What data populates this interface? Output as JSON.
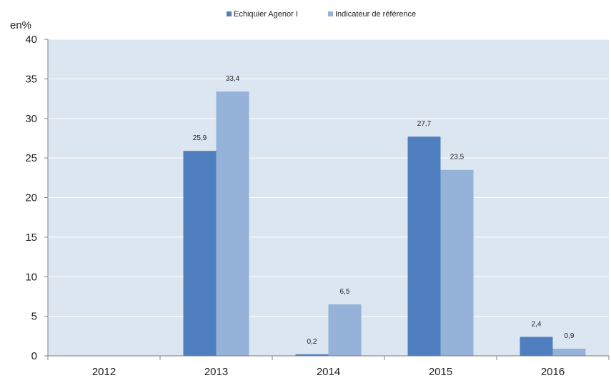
{
  "chart_data": {
    "type": "bar",
    "categories": [
      "2012",
      "2013",
      "2014",
      "2015",
      "2016"
    ],
    "series": [
      {
        "name": "Echiquier Agenor I",
        "values": [
          null,
          25.9,
          0.2,
          27.7,
          2.4
        ],
        "labels": [
          "",
          "25,9",
          "0,2",
          "27,7",
          "2,4"
        ]
      },
      {
        "name": "Indicateur de référence",
        "values": [
          null,
          33.4,
          6.5,
          23.5,
          0.9
        ],
        "labels": [
          "",
          "33,4",
          "6,5",
          "23,5",
          "0,9"
        ]
      }
    ],
    "ylabel": "en%",
    "ylim": [
      0,
      40
    ],
    "yticks": [
      0,
      5,
      10,
      15,
      20,
      25,
      30,
      35,
      40
    ],
    "grid": true,
    "legend_position": "top-center"
  },
  "colors": {
    "series": [
      "#4f7fbf",
      "#95b3d9"
    ],
    "plot_background": "#dce6f1",
    "gridline": "#ffffff",
    "axis": "#808080"
  }
}
